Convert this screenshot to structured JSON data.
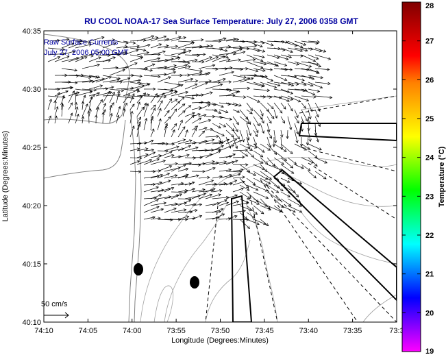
{
  "title": "RU COOL  NOAA-17  Sea Surface Temperature:  July 27, 2006 0358 GMT",
  "overlay": {
    "line1": "Raw Surface Currents",
    "line2": "July 27, 2006 05:00 GMT"
  },
  "axes": {
    "xlabel": "Longitude (Degrees:Minutes)",
    "ylabel": "Latitude (Degrees:Minutes)",
    "x_ticks": [
      "74:10",
      "74:05",
      "74:00",
      "73:55",
      "73:50",
      "73:45",
      "73:40",
      "73:35",
      "73:3"
    ],
    "y_ticks": [
      "40:35",
      "40:30",
      "40:25",
      "40:20",
      "40:15",
      "40:10"
    ]
  },
  "scale": {
    "label": "50 cm/s"
  },
  "colorbar": {
    "label": "Temperature (°C)",
    "ticks": [
      "28",
      "27",
      "26",
      "25",
      "24",
      "23",
      "22",
      "21",
      "20",
      "19"
    ],
    "range": [
      19,
      28
    ],
    "colors": [
      "#ff00ff",
      "#8000ff",
      "#0000ff",
      "#0080ff",
      "#00ffff",
      "#00ff80",
      "#00ff00",
      "#80ff00",
      "#ffff00",
      "#ffc000",
      "#ff8000",
      "#ff0000",
      "#c00000",
      "#800000"
    ]
  },
  "map": {
    "land_color": "#ffffff",
    "contour_color": "#a0a0a0",
    "vector_color": "#000000"
  }
}
